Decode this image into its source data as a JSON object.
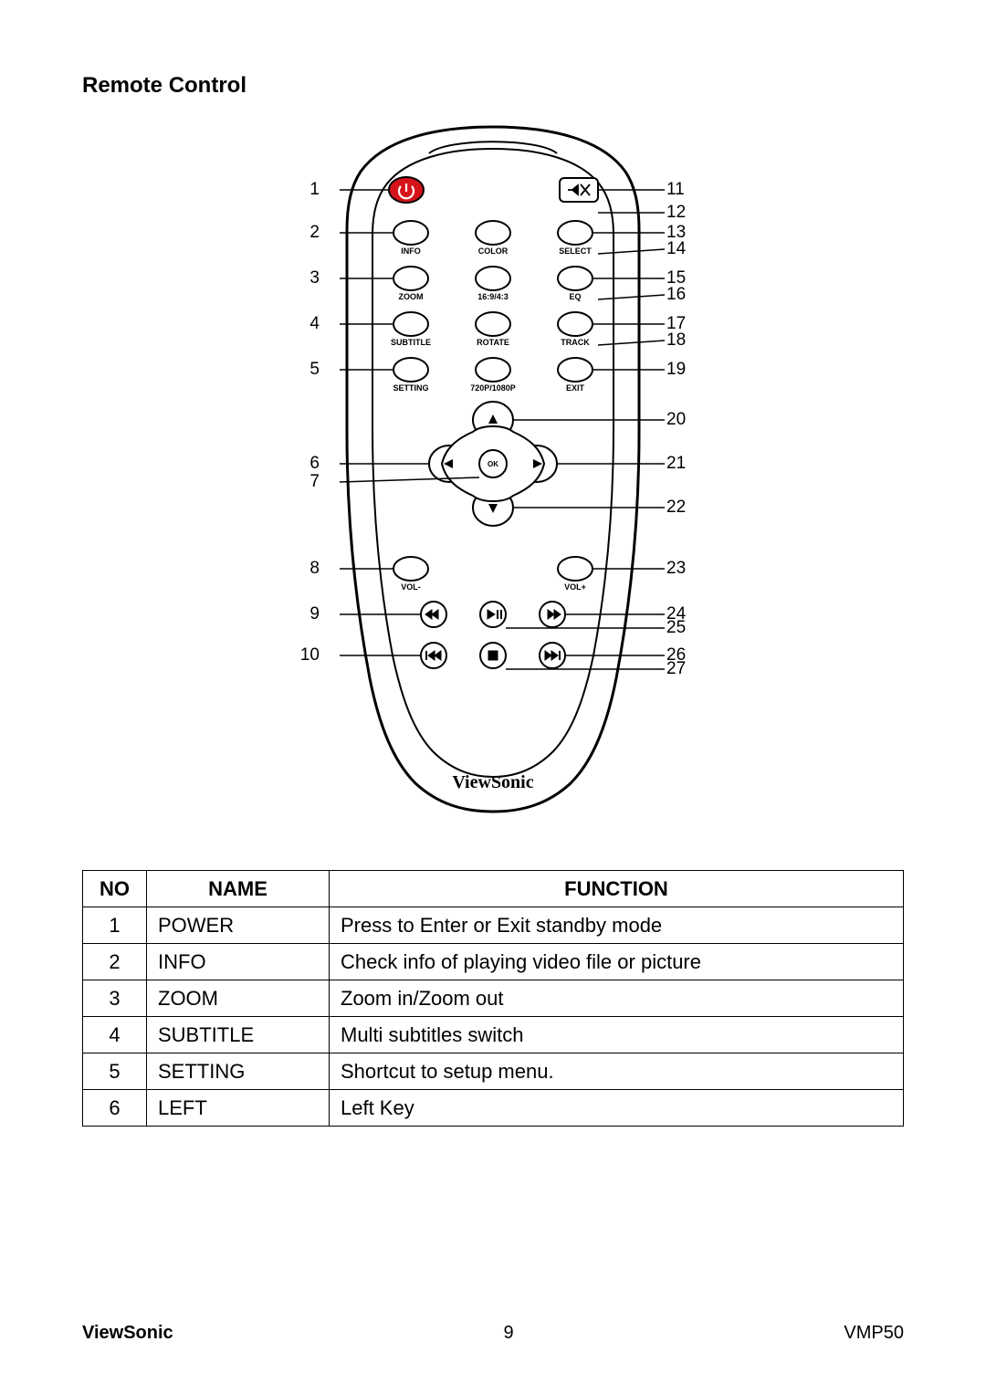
{
  "title": "Remote Control",
  "brand_on_remote": "ViewSonic",
  "remote": {
    "left_labels": [
      "1",
      "2",
      "3",
      "4",
      "5",
      "6",
      "7",
      "8",
      "9",
      "10"
    ],
    "right_labels": [
      "11",
      "12",
      "13",
      "14",
      "15",
      "16",
      "17",
      "18",
      "19",
      "20",
      "21",
      "22",
      "23",
      "24",
      "25",
      "26",
      "27"
    ],
    "button_rows": [
      [
        "INFO",
        "COLOR",
        "SELECT"
      ],
      [
        "ZOOM",
        "16:9/4:3",
        "EQ"
      ],
      [
        "SUBTITLE",
        "ROTATE",
        "TRACK"
      ],
      [
        "SETTING",
        "720P/1080P",
        "EXIT"
      ]
    ],
    "dpad_center": "OK",
    "vol": {
      "minus": "VOL-",
      "plus": "VOL+"
    },
    "colors": {
      "outline": "#000000",
      "power_fill": "#d6131a",
      "background": "#ffffff"
    },
    "callout_font_size": 19,
    "button_label_font_size": 9
  },
  "table": {
    "headers": [
      "NO",
      "NAME",
      "FUNCTION"
    ],
    "rows": [
      {
        "no": "1",
        "name": "POWER",
        "func": "Press to Enter or Exit standby mode"
      },
      {
        "no": "2",
        "name": "INFO",
        "func": "Check info of playing video file or picture"
      },
      {
        "no": "3",
        "name": "ZOOM",
        "func": "Zoom in/Zoom out"
      },
      {
        "no": "4",
        "name": "SUBTITLE",
        "func": "Multi subtitles switch"
      },
      {
        "no": "5",
        "name": "SETTING",
        "func": "Shortcut to setup menu."
      },
      {
        "no": "6",
        "name": "LEFT",
        "func": "Left Key"
      }
    ]
  },
  "footer": {
    "brand": "ViewSonic",
    "page": "9",
    "model": "VMP50"
  }
}
